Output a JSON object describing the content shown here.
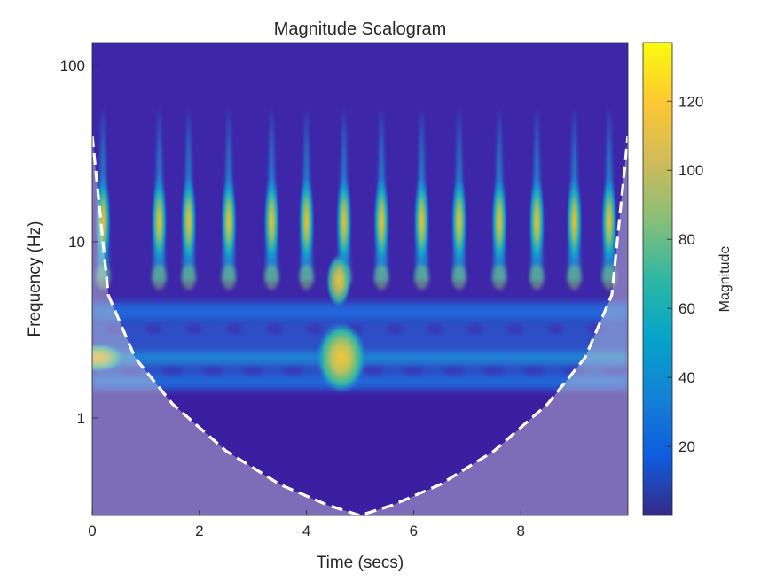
{
  "chart_data": {
    "type": "heatmap",
    "title": "Magnitude Scalogram",
    "xlabel": "Time (secs)",
    "ylabel": "Frequency (Hz)",
    "x_ticks": [
      {
        "value": 0,
        "label": "0"
      },
      {
        "value": 2,
        "label": "2"
      },
      {
        "value": 4,
        "label": "4"
      },
      {
        "value": 6,
        "label": "6"
      },
      {
        "value": 8,
        "label": "8"
      }
    ],
    "y_ticks": [
      {
        "value": 1,
        "label": "1"
      },
      {
        "value": 10,
        "label": "10"
      },
      {
        "value": 100,
        "label": "100"
      }
    ],
    "xlim": [
      0,
      10
    ],
    "ylim": [
      0.28,
      135
    ],
    "y_scale": "log",
    "colorbar": {
      "label": "Magnitude",
      "range": [
        0,
        137
      ],
      "ticks": [
        {
          "value": 20,
          "label": "20"
        },
        {
          "value": 40,
          "label": "40"
        },
        {
          "value": 60,
          "label": "60"
        },
        {
          "value": 80,
          "label": "80"
        },
        {
          "value": 100,
          "label": "100"
        },
        {
          "value": 120,
          "label": "120"
        }
      ],
      "colormap": "parula"
    },
    "burst_times": [
      0.2,
      1.25,
      1.8,
      2.55,
      3.35,
      4.0,
      4.7,
      5.4,
      6.15,
      6.85,
      7.6,
      8.3,
      9.0,
      9.65
    ],
    "low_freq_bands_hz": [
      2.2,
      4.0,
      1.6
    ],
    "cone_of_influence": {
      "style": "white-dashed",
      "shaded": true,
      "points": [
        {
          "t": 0.0,
          "f": 40
        },
        {
          "t": 0.3,
          "f": 5
        },
        {
          "t": 0.8,
          "f": 2.2
        },
        {
          "t": 1.5,
          "f": 1.2
        },
        {
          "t": 2.5,
          "f": 0.65
        },
        {
          "t": 3.5,
          "f": 0.42
        },
        {
          "t": 4.4,
          "f": 0.32
        },
        {
          "t": 5.0,
          "f": 0.28
        },
        {
          "t": 5.6,
          "f": 0.32
        },
        {
          "t": 6.5,
          "f": 0.42
        },
        {
          "t": 7.5,
          "f": 0.65
        },
        {
          "t": 8.5,
          "f": 1.2
        },
        {
          "t": 9.2,
          "f": 2.2
        },
        {
          "t": 9.7,
          "f": 5
        },
        {
          "t": 10.0,
          "f": 40
        }
      ]
    }
  },
  "colors": {
    "background": "#3e26a8",
    "coi_shade": "#d8d8d8",
    "coi_line": "#ffffff"
  }
}
